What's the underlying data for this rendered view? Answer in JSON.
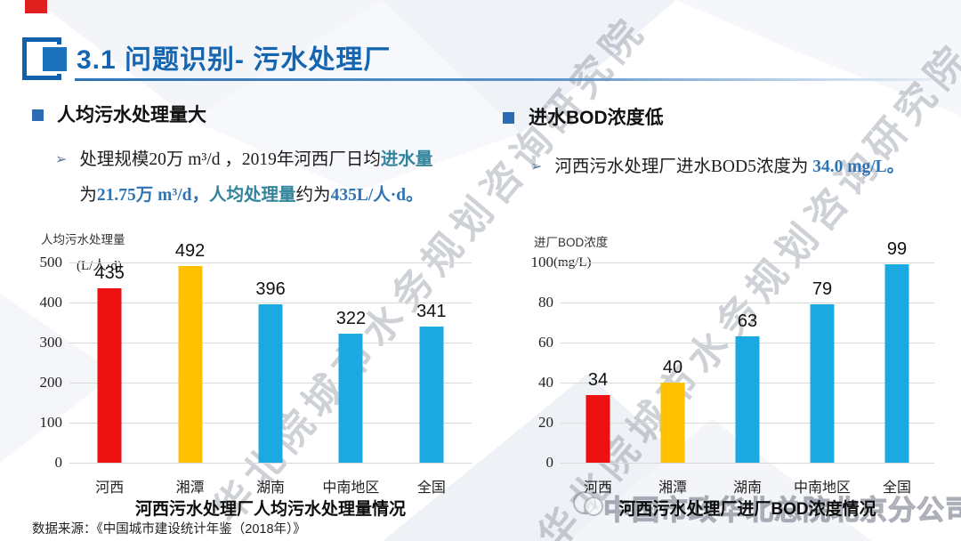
{
  "slide": {
    "title": "3.1 问题识别- 污水处理厂",
    "source_note": "数据来源：《中国城市建设统计年鉴（2018年）》"
  },
  "sections": {
    "left": {
      "heading": "人均污水处理量大",
      "lines": [
        [
          {
            "text": "处理规模20万 m³/d ，2019年河西厂日均",
            "style": "normal"
          },
          {
            "text": "进水量",
            "style": "teal"
          }
        ],
        [
          {
            "text": "为",
            "style": "normal"
          },
          {
            "text": "21.75万 m³/d，",
            "style": "blue"
          },
          {
            "text": "人均处理量",
            "style": "teal"
          },
          {
            "text": "约为",
            "style": "normal"
          },
          {
            "text": "435L/人·d。",
            "style": "blue"
          }
        ]
      ]
    },
    "right": {
      "heading": "进水BOD浓度低",
      "lines": [
        [
          {
            "text": "河西污水处理厂进水BOD5浓度为 ",
            "style": "normal"
          },
          {
            "text": "34.0 mg/L。",
            "style": "blue"
          }
        ]
      ]
    }
  },
  "chart_data": [
    {
      "type": "bar",
      "title": "河西污水处理厂人均污水处理量情况",
      "axis_name": "人均污水处理量",
      "unit_label": "(L/人·d)",
      "categories": [
        "河西",
        "湘潭",
        "湖南",
        "中南地区",
        "全国"
      ],
      "values": [
        435,
        492,
        396,
        322,
        341
      ],
      "bar_colors": [
        "#ee1111",
        "#ffc000",
        "#1ba9e1",
        "#1ba9e1",
        "#1ba9e1"
      ],
      "ylim": [
        0,
        500
      ],
      "yticks": [
        0,
        100,
        200,
        300,
        400,
        500
      ],
      "grid": true,
      "legend": "none",
      "xlabel": "",
      "ylabel": "人均污水处理量 (L/人·d)"
    },
    {
      "type": "bar",
      "title": "河西污水处理厂进厂BOD浓度情况",
      "axis_name": "进厂BOD浓度",
      "unit_label": "(mg/L)",
      "categories": [
        "河西",
        "湘潭",
        "湖南",
        "中南地区",
        "全国"
      ],
      "values": [
        34,
        40,
        63,
        79,
        99
      ],
      "bar_colors": [
        "#ee1111",
        "#ffc000",
        "#1ba9e1",
        "#1ba9e1",
        "#1ba9e1"
      ],
      "ylim": [
        0,
        100
      ],
      "yticks": [
        0,
        20,
        40,
        60,
        80,
        100
      ],
      "grid": true,
      "legend": "none",
      "xlabel": "",
      "ylabel": "进厂BOD浓度 (mg/L)"
    }
  ],
  "watermarks": {
    "diagonal_text": "华北院城市水务规划咨询研究院",
    "bottom_text": "中国市政华北总院北京分公司"
  },
  "colors": {
    "title_blue": "#1565b0",
    "accent_blue": "#2e74b5",
    "teal_highlight": "#31849b",
    "bar_red": "#ee1111",
    "bar_yellow": "#ffc000",
    "bar_cyan": "#1ba9e1",
    "gridline": "#d9d9d9"
  }
}
